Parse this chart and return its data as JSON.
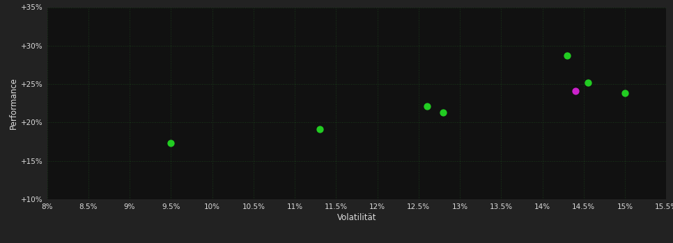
{
  "background_color": "#222222",
  "plot_bg_color": "#111111",
  "grid_color": "#1a3a1a",
  "text_color": "#dddddd",
  "xlabel": "Volatilität",
  "ylabel": "Performance",
  "xlim": [
    0.08,
    0.155
  ],
  "ylim": [
    0.1,
    0.35
  ],
  "xticks": [
    0.08,
    0.085,
    0.09,
    0.095,
    0.1,
    0.105,
    0.11,
    0.115,
    0.12,
    0.125,
    0.13,
    0.135,
    0.14,
    0.145,
    0.15,
    0.155
  ],
  "yticks": [
    0.1,
    0.15,
    0.2,
    0.25,
    0.3,
    0.35
  ],
  "points_green": [
    [
      0.095,
      0.173
    ],
    [
      0.113,
      0.191
    ],
    [
      0.126,
      0.221
    ],
    [
      0.128,
      0.213
    ],
    [
      0.143,
      0.287
    ],
    [
      0.1455,
      0.252
    ],
    [
      0.15,
      0.238
    ]
  ],
  "points_magenta": [
    [
      0.144,
      0.241
    ]
  ],
  "point_color_green": "#22cc22",
  "point_color_magenta": "#cc22cc",
  "marker_size": 55
}
